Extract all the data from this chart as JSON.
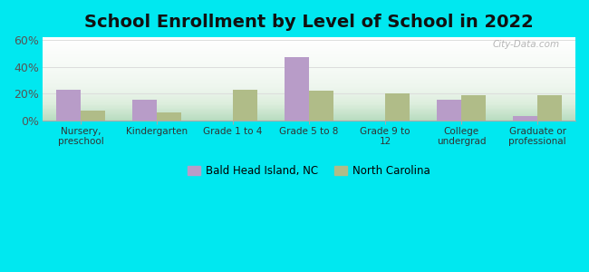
{
  "title": "School Enrollment by Level of School in 2022",
  "categories": [
    "Nursery,\npreschool",
    "Kindergarten",
    "Grade 1 to 4",
    "Grade 5 to 8",
    "Grade 9 to\n12",
    "College\nundergrad",
    "Graduate or\nprofessional"
  ],
  "bald_head_values": [
    23,
    15,
    0,
    47,
    0,
    15,
    3
  ],
  "nc_values": [
    7,
    6,
    23,
    22,
    20,
    19,
    19
  ],
  "bar_color_bald": "#b89cc8",
  "bar_color_nc": "#b0bc88",
  "background_outer": "#00e8f0",
  "legend_label_bald": "Bald Head Island, NC",
  "legend_label_nc": "North Carolina",
  "ylim": [
    0,
    62
  ],
  "yticks": [
    0,
    20,
    40,
    60
  ],
  "ytick_labels": [
    "0%",
    "20%",
    "40%",
    "60%"
  ],
  "grid_color": "#dddddd",
  "watermark": "City-Data.com",
  "title_fontsize": 14,
  "bar_width": 0.32,
  "gradient_top": "#e8f5e0",
  "gradient_bottom": "#c8ecd8"
}
